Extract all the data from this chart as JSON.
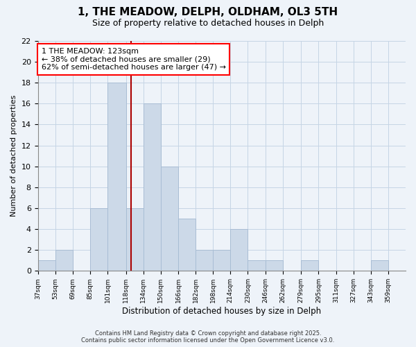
{
  "title": "1, THE MEADOW, DELPH, OLDHAM, OL3 5TH",
  "subtitle": "Size of property relative to detached houses in Delph",
  "xlabel": "Distribution of detached houses by size in Delph",
  "ylabel": "Number of detached properties",
  "bin_labels": [
    "37sqm",
    "53sqm",
    "69sqm",
    "85sqm",
    "101sqm",
    "118sqm",
    "134sqm",
    "150sqm",
    "166sqm",
    "182sqm",
    "198sqm",
    "214sqm",
    "230sqm",
    "246sqm",
    "262sqm",
    "279sqm",
    "295sqm",
    "311sqm",
    "327sqm",
    "343sqm",
    "359sqm"
  ],
  "bin_edges": [
    37,
    53,
    69,
    85,
    101,
    118,
    134,
    150,
    166,
    182,
    198,
    214,
    230,
    246,
    262,
    279,
    295,
    311,
    327,
    343,
    359,
    375
  ],
  "counts": [
    1,
    2,
    0,
    6,
    18,
    6,
    16,
    10,
    5,
    2,
    2,
    4,
    1,
    1,
    0,
    1,
    0,
    0,
    0,
    1,
    0
  ],
  "bar_color": "#ccd9e8",
  "bar_edge_color": "#a8bdd4",
  "grid_color": "#c5d5e5",
  "vline_x": 123,
  "vline_color": "#aa0000",
  "annotation_line1": "1 THE MEADOW: 123sqm",
  "annotation_line2": "← 38% of detached houses are smaller (29)",
  "annotation_line3": "62% of semi-detached houses are larger (47) →",
  "ylim": [
    0,
    22
  ],
  "yticks": [
    0,
    2,
    4,
    6,
    8,
    10,
    12,
    14,
    16,
    18,
    20,
    22
  ],
  "footer_line1": "Contains HM Land Registry data © Crown copyright and database right 2025.",
  "footer_line2": "Contains public sector information licensed under the Open Government Licence v3.0.",
  "bg_color": "#eef3f9",
  "title_fontsize": 11,
  "subtitle_fontsize": 9,
  "ann_fontsize": 8
}
